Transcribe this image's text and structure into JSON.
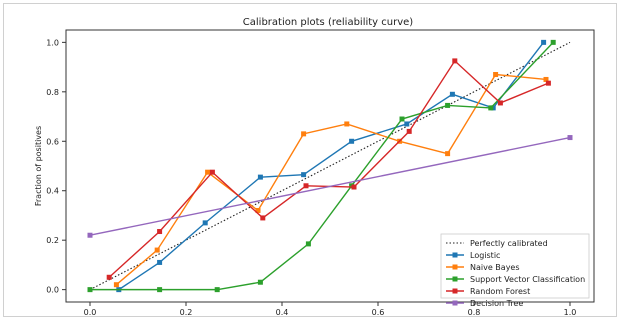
{
  "chart_data": {
    "type": "line",
    "title": "Calibration plots  (reliability curve)",
    "xlabel": "",
    "ylabel": "Fraction of positives",
    "xlim": [
      -0.05,
      1.05
    ],
    "ylim": [
      -0.05,
      1.05
    ],
    "x_ticks": [
      "0.0",
      "0.2",
      "0.4",
      "0.6",
      "0.8",
      "1.0"
    ],
    "y_ticks": [
      "0.0",
      "0.2",
      "0.4",
      "0.6",
      "0.8",
      "1.0"
    ],
    "grid": false,
    "legend_position": "bottom-right",
    "series": [
      {
        "name": "Perfectly calibrated",
        "color": "#222222",
        "style": "dotted",
        "x": [
          0.0,
          1.0
        ],
        "y": [
          0.0,
          1.0
        ]
      },
      {
        "name": "Logistic",
        "color": "#1f77b4",
        "x": [
          0.06,
          0.145,
          0.24,
          0.355,
          0.445,
          0.545,
          0.66,
          0.755,
          0.84,
          0.945
        ],
        "y": [
          0.0,
          0.11,
          0.27,
          0.455,
          0.465,
          0.6,
          0.67,
          0.79,
          0.735,
          1.0
        ]
      },
      {
        "name": "Naive Bayes",
        "color": "#ff7f0e",
        "x": [
          0.055,
          0.14,
          0.245,
          0.35,
          0.445,
          0.535,
          0.645,
          0.745,
          0.845,
          0.95
        ],
        "y": [
          0.02,
          0.16,
          0.475,
          0.32,
          0.63,
          0.67,
          0.6,
          0.55,
          0.87,
          0.85
        ]
      },
      {
        "name": "Support Vector Classification",
        "color": "#2ca02c",
        "x": [
          0.0,
          0.145,
          0.265,
          0.355,
          0.455,
          0.545,
          0.65,
          0.745,
          0.835,
          0.965
        ],
        "y": [
          0.0,
          0.0,
          0.0,
          0.03,
          0.185,
          0.42,
          0.69,
          0.745,
          0.735,
          1.0
        ]
      },
      {
        "name": "Random Forest",
        "color": "#d62728",
        "x": [
          0.04,
          0.145,
          0.255,
          0.36,
          0.45,
          0.55,
          0.665,
          0.76,
          0.855,
          0.955
        ],
        "y": [
          0.05,
          0.235,
          0.475,
          0.29,
          0.42,
          0.415,
          0.64,
          0.925,
          0.755,
          0.835
        ]
      },
      {
        "name": "Decision Tree",
        "color": "#9467bd",
        "x": [
          0.0,
          1.0
        ],
        "y": [
          0.22,
          0.615
        ]
      }
    ]
  }
}
